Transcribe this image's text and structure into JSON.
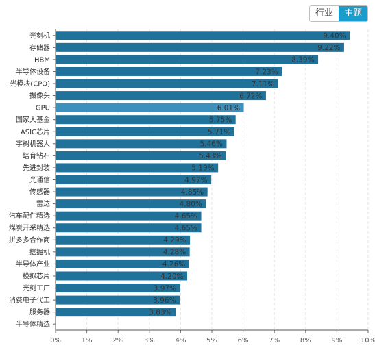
{
  "toggle": {
    "options": [
      "行业",
      "主题"
    ],
    "active": "主题"
  },
  "chart_data": {
    "type": "bar",
    "orientation": "horizontal",
    "categories": [
      "光刻机",
      "存储器",
      "HBM",
      "半导体设备",
      "光模块(CPO)",
      "摄像头",
      "GPU",
      "国家大基金",
      "ASIC芯片",
      "宇树机器人",
      "培育钻石",
      "先进封装",
      "光通信",
      "传感器",
      "雷达",
      "汽车配件精选",
      "煤炭开采精选",
      "拼多多合作商",
      "挖掘机",
      "半导体产业",
      "模拟芯片",
      "光刻工厂",
      "消费电子代工",
      "服务器",
      "半导体精选"
    ],
    "values": [
      9.4,
      9.22,
      8.39,
      7.23,
      7.11,
      6.72,
      6.01,
      5.75,
      5.71,
      5.46,
      5.43,
      5.19,
      4.97,
      4.85,
      4.8,
      4.65,
      4.65,
      4.29,
      4.28,
      4.26,
      4.2,
      3.97,
      3.96,
      3.83,
      null
    ],
    "value_labels": [
      "9.40%",
      "9.22%",
      "8.39%",
      "7.23%",
      "7.11%",
      "6.72%",
      "6.01%",
      "5.75%",
      "5.71%",
      "5.46%",
      "5.43%",
      "5.19%",
      "4.97%",
      "4.85%",
      "4.80%",
      "4.65%",
      "4.65%",
      "4.29%",
      "4.28%",
      "4.26%",
      "4.20%",
      "3.97%",
      "3.96%",
      "3.83%",
      ""
    ],
    "highlight_category": "GPU",
    "xlim": [
      0,
      10
    ],
    "xticks": [
      "0%",
      "1%",
      "2%",
      "3%",
      "4%",
      "5%",
      "6%",
      "7%",
      "8%",
      "9%",
      "10%"
    ],
    "grid": true,
    "colors": {
      "bar": "#20729b",
      "highlight": "#3d8fbc"
    }
  }
}
